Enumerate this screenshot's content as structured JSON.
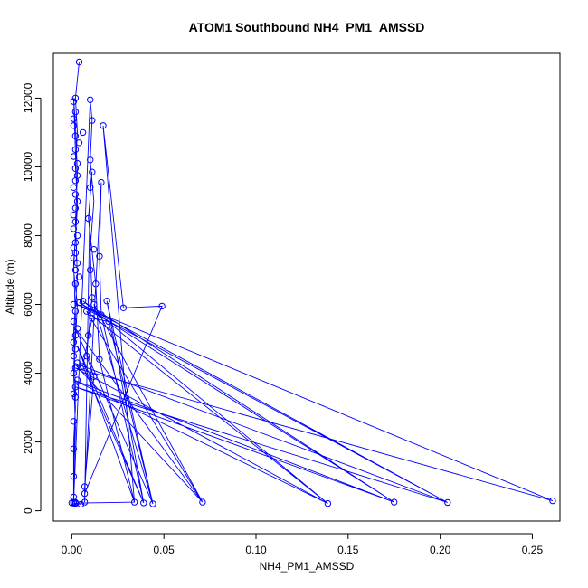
{
  "chart_data": {
    "type": "line",
    "title": "ATOM1 Southbound NH4_PM1_AMSSD",
    "xlabel": "NH4_PM1_AMSSD",
    "ylabel": "Altitude (m)",
    "xlim": [
      -0.01,
      0.265
    ],
    "ylim": [
      -300,
      13300
    ],
    "x_ticks": [
      0.0,
      0.05,
      0.1,
      0.15,
      0.2,
      0.25
    ],
    "x_tick_labels": [
      "0.00",
      "0.05",
      "0.10",
      "0.15",
      "0.20",
      "0.25"
    ],
    "y_ticks": [
      0,
      2000,
      4000,
      6000,
      8000,
      10000,
      12000
    ],
    "y_tick_labels": [
      "0",
      "2000",
      "4000",
      "6000",
      "8000",
      "10000",
      "12000"
    ],
    "grid": false,
    "marker": "open-circle",
    "series": [
      {
        "color": "#0000ff",
        "points": [
          [
            0.004,
            13050
          ],
          [
            0.002,
            12000
          ],
          [
            0.001,
            11900
          ],
          [
            0.002,
            11600
          ],
          [
            0.001,
            11400
          ],
          [
            0.001,
            11200
          ],
          [
            0.006,
            11000
          ],
          [
            0.002,
            10900
          ],
          [
            0.004,
            10700
          ],
          [
            0.002,
            10500
          ],
          [
            0.001,
            10300
          ],
          [
            0.003,
            10100
          ],
          [
            0.002,
            9950
          ],
          [
            0.003,
            9750
          ],
          [
            0.002,
            9600
          ],
          [
            0.001,
            9400
          ],
          [
            0.002,
            9200
          ],
          [
            0.003,
            9000
          ],
          [
            0.002,
            8800
          ],
          [
            0.001,
            8600
          ],
          [
            0.002,
            8400
          ],
          [
            0.001,
            8200
          ],
          [
            0.003,
            8000
          ],
          [
            0.002,
            7800
          ],
          [
            0.001,
            7650
          ],
          [
            0.002,
            7500
          ],
          [
            0.001,
            7350
          ],
          [
            0.003,
            7200
          ],
          [
            0.002,
            7000
          ],
          [
            0.004,
            6800
          ],
          [
            0.002,
            6600
          ],
          [
            0.01,
            11950
          ],
          [
            0.011,
            11350
          ],
          [
            0.01,
            10200
          ],
          [
            0.011,
            9850
          ],
          [
            0.01,
            9400
          ],
          [
            0.009,
            8500
          ],
          [
            0.012,
            7600
          ],
          [
            0.01,
            7000
          ],
          [
            0.013,
            6600
          ],
          [
            0.011,
            6200
          ],
          [
            0.017,
            11200
          ],
          [
            0.016,
            9550
          ],
          [
            0.015,
            7400
          ],
          [
            0.019,
            6100
          ],
          [
            0.028,
            5900
          ],
          [
            0.049,
            5950
          ],
          [
            0.008,
            5800
          ],
          [
            0.006,
            6100
          ],
          [
            0.004,
            6050
          ],
          [
            0.012,
            6000
          ],
          [
            0.016,
            5700
          ],
          [
            0.02,
            5500
          ],
          [
            0.011,
            5600
          ],
          [
            0.001,
            6000
          ],
          [
            0.002,
            5800
          ],
          [
            0.001,
            5500
          ],
          [
            0.003,
            5300
          ],
          [
            0.002,
            5100
          ],
          [
            0.001,
            4900
          ],
          [
            0.002,
            4700
          ],
          [
            0.001,
            4500
          ],
          [
            0.003,
            4300
          ],
          [
            0.002,
            4150
          ],
          [
            0.001,
            4000
          ],
          [
            0.003,
            3800
          ],
          [
            0.002,
            3600
          ],
          [
            0.001,
            3400
          ],
          [
            0.009,
            5100
          ],
          [
            0.008,
            4500
          ],
          [
            0.015,
            4400
          ],
          [
            0.012,
            3900
          ],
          [
            0.006,
            4200
          ],
          [
            0.002,
            3300
          ],
          [
            0.001,
            2600
          ],
          [
            0.001,
            1800
          ],
          [
            0.001,
            1000
          ],
          [
            0.001,
            400
          ],
          [
            0.001,
            250
          ],
          [
            0.0,
            230
          ],
          [
            0.002,
            210
          ],
          [
            0.005,
            190
          ],
          [
            0.007,
            500
          ],
          [
            0.007,
            700
          ],
          [
            0.007,
            250
          ],
          [
            0.034,
            250
          ],
          [
            0.039,
            230
          ],
          [
            0.044,
            200
          ],
          [
            0.071,
            250
          ],
          [
            0.139,
            210
          ],
          [
            0.175,
            250
          ],
          [
            0.204,
            240
          ],
          [
            0.261,
            290
          ],
          [
            0.001,
            220
          ],
          [
            0.002,
            240
          ]
        ],
        "path": [
          [
            0.004,
            13050
          ],
          [
            0.002,
            12000
          ],
          [
            0.003,
            11000
          ],
          [
            0.002,
            10000
          ],
          [
            0.003,
            9000
          ],
          [
            0.002,
            8000
          ],
          [
            0.001,
            7000
          ],
          [
            0.003,
            6000
          ],
          [
            0.002,
            5000
          ],
          [
            0.001,
            4000
          ],
          [
            0.002,
            3000
          ],
          [
            0.001,
            2000
          ],
          [
            0.001,
            1000
          ],
          [
            0.001,
            250
          ],
          [
            0.002,
            3500
          ],
          [
            0.001,
            5200
          ],
          [
            0.003,
            6800
          ],
          [
            0.002,
            8400
          ],
          [
            0.003,
            9800
          ],
          [
            0.002,
            11200
          ],
          [
            0.001,
            12000
          ],
          [
            0.002,
            10400
          ],
          [
            0.003,
            8800
          ],
          [
            0.001,
            7200
          ],
          [
            0.002,
            5600
          ],
          [
            0.001,
            4000
          ],
          [
            0.002,
            2400
          ],
          [
            0.001,
            800
          ],
          [
            0.001,
            250
          ],
          [
            0.01,
            11950
          ],
          [
            0.011,
            11350
          ],
          [
            0.01,
            10200
          ],
          [
            0.012,
            9000
          ],
          [
            0.01,
            7600
          ],
          [
            0.011,
            6200
          ],
          [
            0.009,
            5100
          ],
          [
            0.008,
            4500
          ],
          [
            0.012,
            3900
          ],
          [
            0.007,
            700
          ],
          [
            0.007,
            250
          ],
          [
            0.01,
            9400
          ],
          [
            0.011,
            9850
          ],
          [
            0.009,
            8500
          ],
          [
            0.013,
            6600
          ],
          [
            0.015,
            4400
          ],
          [
            0.034,
            250
          ],
          [
            0.017,
            11200
          ],
          [
            0.028,
            5900
          ],
          [
            0.049,
            5950
          ],
          [
            0.007,
            500
          ],
          [
            0.016,
            9550
          ],
          [
            0.015,
            7400
          ],
          [
            0.016,
            5700
          ],
          [
            0.039,
            230
          ],
          [
            0.019,
            6100
          ],
          [
            0.044,
            200
          ],
          [
            0.012,
            6000
          ],
          [
            0.071,
            250
          ],
          [
            0.008,
            5800
          ],
          [
            0.139,
            210
          ],
          [
            0.006,
            6100
          ],
          [
            0.175,
            250
          ],
          [
            0.004,
            6050
          ],
          [
            0.204,
            240
          ],
          [
            0.003,
            6000
          ],
          [
            0.261,
            290
          ],
          [
            0.002,
            4150
          ],
          [
            0.139,
            210
          ],
          [
            0.001,
            3800
          ],
          [
            0.175,
            250
          ],
          [
            0.002,
            3600
          ],
          [
            0.204,
            240
          ],
          [
            0.001,
            4300
          ],
          [
            0.071,
            250
          ],
          [
            0.002,
            5300
          ],
          [
            0.044,
            200
          ],
          [
            0.02,
            5500
          ],
          [
            0.011,
            5600
          ],
          [
            0.006,
            4200
          ],
          [
            0.039,
            230
          ],
          [
            0.003,
            4800
          ],
          [
            0.034,
            250
          ],
          [
            0.001,
            220
          ],
          [
            0.005,
            190
          ],
          [
            0.002,
            210
          ],
          [
            0.0,
            230
          ]
        ]
      }
    ]
  }
}
